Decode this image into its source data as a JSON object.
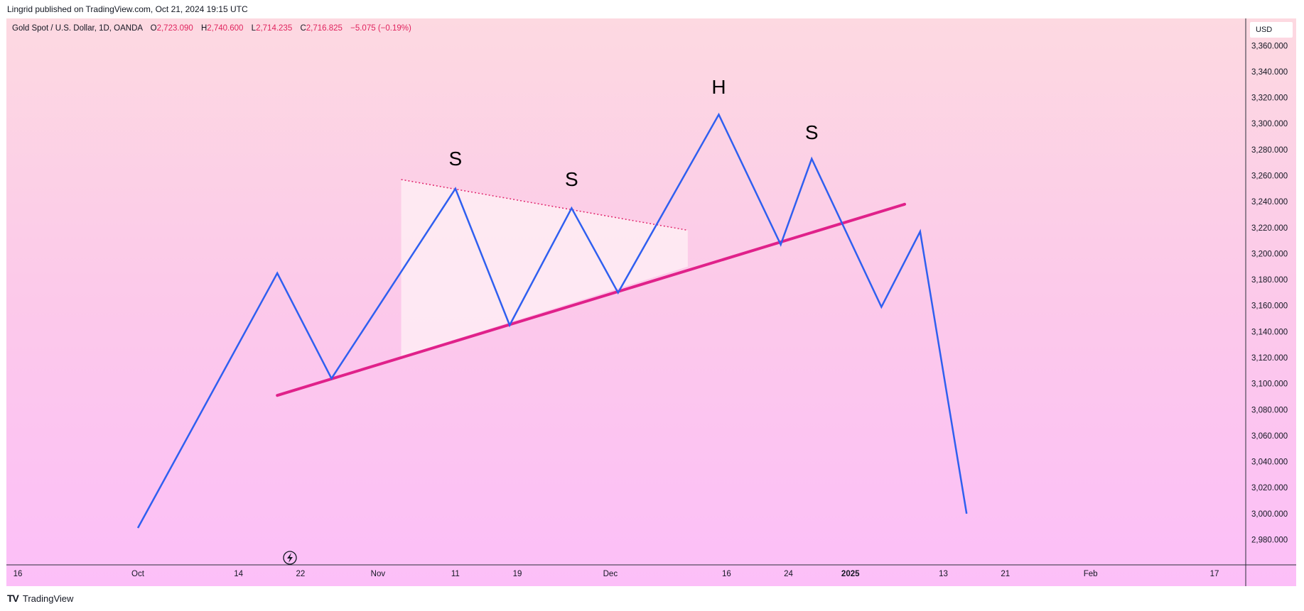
{
  "header": {
    "published": "Lingrid published on TradingView.com, Oct 21, 2024 19:15 UTC"
  },
  "legend": {
    "symbol": "Gold Spot / U.S. Dollar, 1D, OANDA",
    "open_label": "O",
    "open": "2,723.090",
    "high_label": "H",
    "high": "2,740.600",
    "low_label": "L",
    "low": "2,714.235",
    "close_label": "C",
    "close": "2,716.825",
    "change": "−5.075 (−0.19%)"
  },
  "currency": "USD",
  "footer": {
    "brand": "TradingView"
  },
  "colors": {
    "price_line": "#2f5ff0",
    "neckline": "#e0218a",
    "resistance_dotted": "#e0246b",
    "triangle_fill": "#fff1f6",
    "bg_top": "#fdd9e1",
    "bg_bottom": "#fcbff8"
  },
  "chart_data": {
    "type": "line",
    "title": "",
    "xlabel": "",
    "ylabel": "",
    "ylim": [
      2965,
      3370
    ],
    "y_ticks": [
      "2,980.000",
      "3,000.000",
      "3,020.000",
      "3,040.000",
      "3,060.000",
      "3,080.000",
      "3,100.000",
      "3,120.000",
      "3,140.000",
      "3,160.000",
      "3,180.000",
      "3,200.000",
      "3,220.000",
      "3,240.000",
      "3,260.000",
      "3,280.000",
      "3,300.000",
      "3,320.000",
      "3,340.000",
      "3,360.000"
    ],
    "y_tick_values": [
      2980,
      3000,
      3020,
      3040,
      3060,
      3080,
      3100,
      3120,
      3140,
      3160,
      3180,
      3200,
      3220,
      3240,
      3260,
      3280,
      3300,
      3320,
      3340,
      3360
    ],
    "x_ticks": [
      {
        "label": "16",
        "date": "2024-09-16",
        "bold": false
      },
      {
        "label": "Oct",
        "date": "2024-10-01",
        "bold": false
      },
      {
        "label": "14",
        "date": "2024-10-14",
        "bold": false
      },
      {
        "label": "22",
        "date": "2024-10-22",
        "bold": false
      },
      {
        "label": "Nov",
        "date": "2024-11-01",
        "bold": false
      },
      {
        "label": "11",
        "date": "2024-11-11",
        "bold": false
      },
      {
        "label": "19",
        "date": "2024-11-19",
        "bold": false
      },
      {
        "label": "Dec",
        "date": "2024-12-01",
        "bold": false
      },
      {
        "label": "16",
        "date": "2024-12-16",
        "bold": false
      },
      {
        "label": "24",
        "date": "2024-12-24",
        "bold": false
      },
      {
        "label": "2025",
        "date": "2025-01-01",
        "bold": true
      },
      {
        "label": "13",
        "date": "2025-01-13",
        "bold": false
      },
      {
        "label": "21",
        "date": "2025-01-21",
        "bold": false
      },
      {
        "label": "Feb",
        "date": "2025-02-01",
        "bold": false
      },
      {
        "label": "17",
        "date": "2025-02-17",
        "bold": false
      }
    ],
    "series": [
      {
        "points": [
          {
            "x": "2024-10-01",
            "y": 2989
          },
          {
            "x": "2024-10-19",
            "y": 3185
          },
          {
            "x": "2024-10-26",
            "y": 3104
          },
          {
            "x": "2024-11-11",
            "y": 3250
          },
          {
            "x": "2024-11-18",
            "y": 3145
          },
          {
            "x": "2024-11-26",
            "y": 3235
          },
          {
            "x": "2024-12-02",
            "y": 3170
          },
          {
            "x": "2024-12-15",
            "y": 3307
          },
          {
            "x": "2024-12-23",
            "y": 3207
          },
          {
            "x": "2024-12-27",
            "y": 3273
          },
          {
            "x": "2025-01-05",
            "y": 3159
          },
          {
            "x": "2025-01-10",
            "y": 3217
          },
          {
            "x": "2025-01-16",
            "y": 3000
          }
        ]
      }
    ],
    "neckline": {
      "start": {
        "x": "2024-10-19",
        "y": 3091
      },
      "end": {
        "x": "2025-01-08",
        "y": 3238
      }
    },
    "resistance": {
      "start": {
        "x": "2024-11-04",
        "y": 3257
      },
      "end": {
        "x": "2024-12-11",
        "y": 3218
      }
    },
    "triangle": [
      {
        "x": "2024-11-04",
        "y": 3257
      },
      {
        "x": "2024-12-11",
        "y": 3218
      },
      {
        "x": "2024-12-11",
        "y": 3190
      },
      {
        "x": "2024-11-04",
        "y": 3121
      }
    ],
    "annotations": [
      {
        "text": "S",
        "x": "2024-11-11",
        "y": 3268
      },
      {
        "text": "S",
        "x": "2024-11-26",
        "y": 3252
      },
      {
        "text": "H",
        "x": "2024-12-15",
        "y": 3323
      },
      {
        "text": "S",
        "x": "2024-12-27",
        "y": 3288
      }
    ]
  }
}
